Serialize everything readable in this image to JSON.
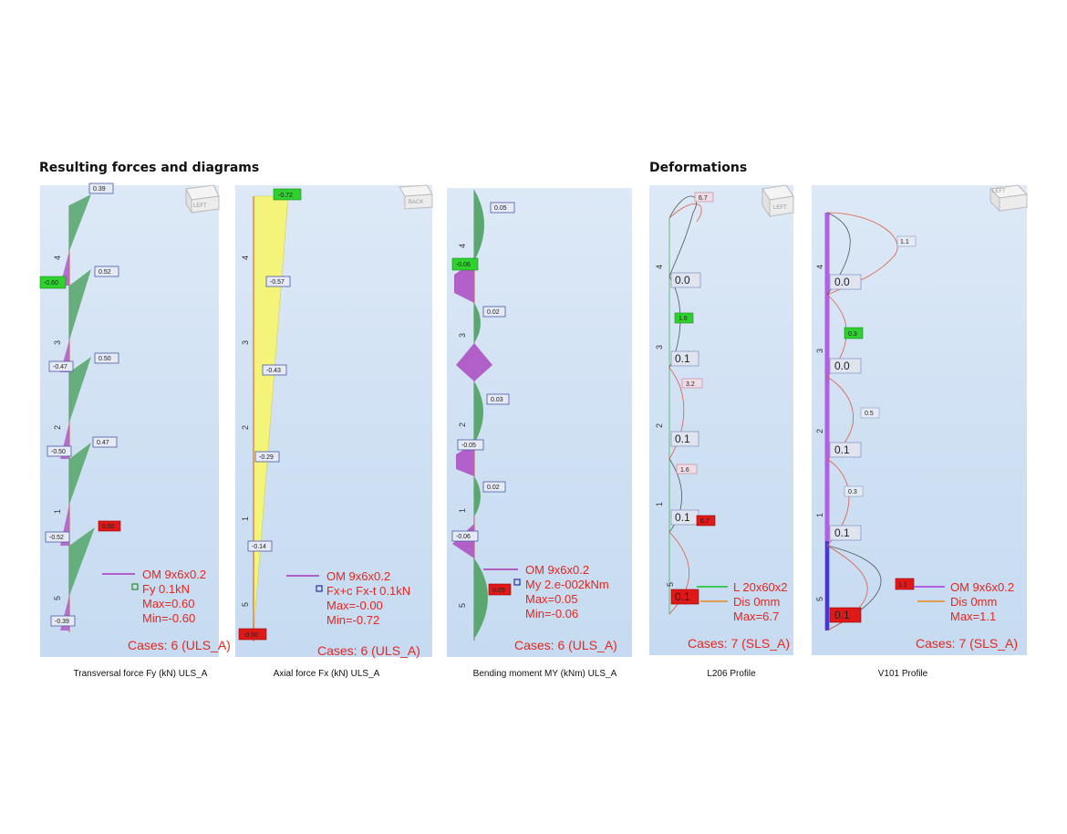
{
  "headings": {
    "left": "Resulting forces and diagrams",
    "right": "Deformations"
  },
  "colors": {
    "purple": "#b060c8",
    "green": "#5aa870",
    "yellow": "#f4f47a",
    "red": "#e8261e",
    "highlight_green": "#2ed12e",
    "highlight_red": "#e01818"
  },
  "panels": {
    "fy": {
      "caption": "Transversal force Fy (kN) ULS_A",
      "cube_label": "LEFT",
      "values": {
        "v1": "0.39",
        "v2": "0.52",
        "v3": "-0.60",
        "v4": "0.50",
        "v5": "-0.47",
        "v6": "0.47",
        "v7": "-0.50",
        "v8": "0.60",
        "v9": "-0.52",
        "v10": "-0.39"
      },
      "axis": {
        "a4": "4",
        "a3": "3",
        "a2": "2",
        "a1": "1",
        "a5": "5"
      },
      "legend": {
        "line1": "OM 9x6x0.2",
        "line2": "Fy  0.1kN",
        "line3": "Max=0.60",
        "line4": "Min=-0.60"
      },
      "cases": "Cases: 6 (ULS_A)"
    },
    "fx": {
      "caption": "Axial force Fx (kN) ULS_A",
      "cube_label": "BACK",
      "values": {
        "v1": "-0.72",
        "v2": "-0.57",
        "v3": "-0.43",
        "v4": "-0.29",
        "v5": "-0.14",
        "v6": "-0.00"
      },
      "axis": {
        "a4": "4",
        "a3": "3",
        "a2": "2",
        "a1": "1",
        "a5": "5"
      },
      "legend": {
        "line1": "OM 9x6x0.2",
        "line2": "Fx+c Fx-t  0.1kN",
        "line3": "Max=-0.00",
        "line4": "Min=-0.72"
      },
      "cases": "Cases: 6 (ULS_A)"
    },
    "my": {
      "caption": "Bending moment MY (kNm) ULS_A",
      "values": {
        "v1": "0.05",
        "v2": "-0.06",
        "v3": "0.02",
        "v4": "0.03",
        "v5": "-0.05",
        "v6": "0.02",
        "v7": "-0.06",
        "v8": "0.05"
      },
      "axis": {
        "a4": "4",
        "a3": "3",
        "a2": "2",
        "a1": "1",
        "a5": "5"
      },
      "legend": {
        "line1": "OM 9x6x0.2",
        "line2": "My  2.e-002kNm",
        "line3": "Max=0.05",
        "line4": "Min=-0.06"
      },
      "cases": "Cases: 6 (ULS_A)"
    },
    "l206": {
      "caption": "L206 Profile",
      "cube_label": "LEFT",
      "values": {
        "v1": "6.7",
        "v2": "0.0",
        "v3": "1.6",
        "v4": "0.1",
        "v5": "3.2",
        "v6": "0.1",
        "v7": "1.6",
        "v8": "0.1",
        "v9": "6.7",
        "v10": "0.1"
      },
      "axis": {
        "a4": "4",
        "a3": "3",
        "a2": "2",
        "a1": "1",
        "a5": "5"
      },
      "legend": {
        "line1": "L 20x60x2",
        "line2": "Dis  0mm",
        "line3": "Max=6.7"
      },
      "cases": "Cases: 7 (SLS_A)"
    },
    "v101": {
      "caption": "V101 Profile",
      "cube_label": "LEFT",
      "values": {
        "v1": "1.1",
        "v2": "0.0",
        "v3": "0.3",
        "v4": "0.0",
        "v5": "0.5",
        "v6": "0.1",
        "v7": "0.3",
        "v8": "0.1",
        "v9": "1.1",
        "v10": "0.1"
      },
      "axis": {
        "a4": "4",
        "a3": "3",
        "a2": "2",
        "a1": "1",
        "a5": "5"
      },
      "legend": {
        "line1": "OM 9x6x0.2",
        "line2": "Dis  0mm",
        "line3": "Max=1.1"
      },
      "cases": "Cases: 7 (SLS_A)"
    }
  }
}
